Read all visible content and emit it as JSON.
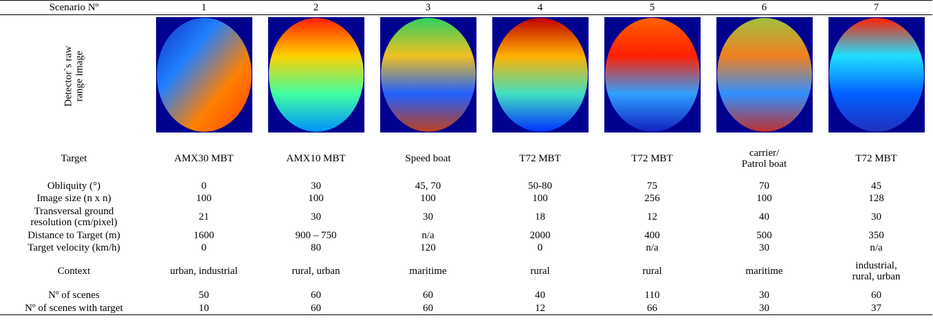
{
  "table": {
    "header": [
      "Scenario Nº",
      "1",
      "2",
      "3",
      "4",
      "5",
      "6",
      "7"
    ],
    "image_row_label": "Detector`s raw\nrange image",
    "rows": [
      [
        "Target",
        "AMX30 MBT",
        "AMX10 MBT",
        "Speed boat",
        "T72 MBT",
        "T72 MBT",
        "carrier/\nPatrol boat",
        "T72 MBT"
      ],
      [
        "Obliquity (°)",
        "0",
        "30",
        "45, 70",
        "50-80",
        "75",
        "70",
        "45"
      ],
      [
        "Image size (n x n)",
        "100",
        "100",
        "100",
        "100",
        "256",
        "100",
        "128"
      ],
      [
        "Transversal ground\nresolution (cm/pixel)",
        "21",
        "30",
        "30",
        "18",
        "12",
        "40",
        "30"
      ],
      [
        "Distance to Target (m)",
        "1600",
        "900 – 750",
        "n/a",
        "2000",
        "400",
        "500",
        "350"
      ],
      [
        "Target velocity (km/h)",
        "0",
        "80",
        "120",
        "0",
        "n/a",
        "30",
        "n/a"
      ],
      [
        "Context",
        "urban, industrial",
        "rural, urban",
        "maritime",
        "rural",
        "rural",
        "maritime",
        "industrial,\nrural, urban"
      ],
      [
        "Nº of scenes",
        "50",
        "60",
        "60",
        "40",
        "110",
        "30",
        "60"
      ],
      [
        "Nº of scenes with target",
        "10",
        "60",
        "60",
        "12",
        "66",
        "30",
        "37"
      ]
    ]
  }
}
